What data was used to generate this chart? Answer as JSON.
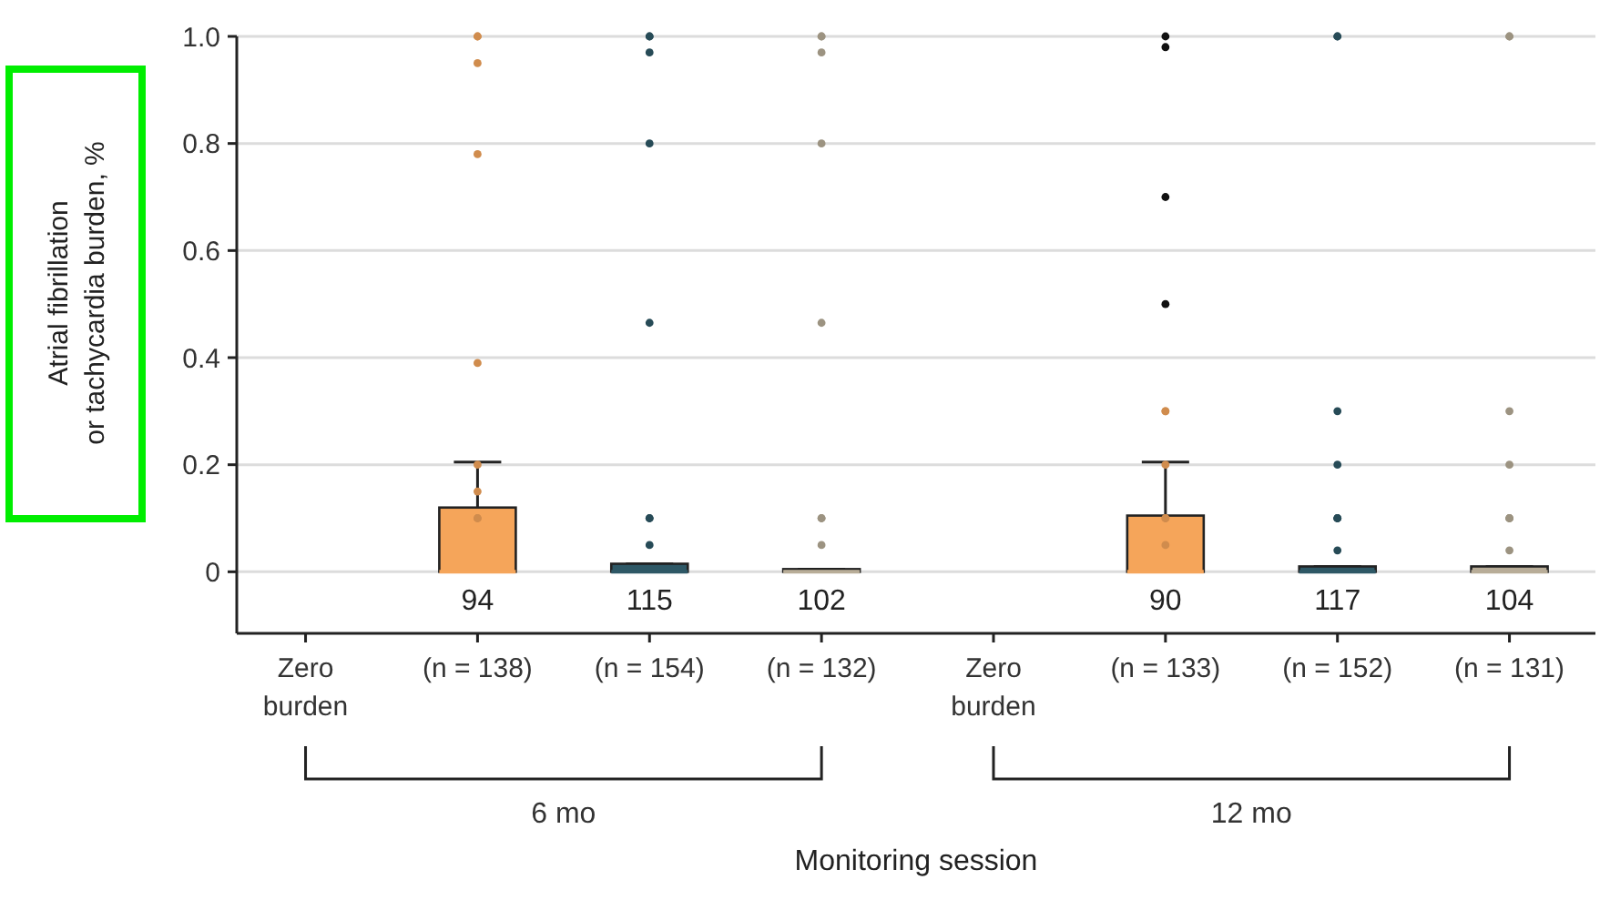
{
  "chart_data": {
    "type": "box",
    "xlabel": "Monitoring session",
    "ylabel": "Atrial fibrillation or tachycardia burden, %",
    "categories": [
      "Zero burden",
      "(n = 138)",
      "(n = 154)",
      "(n = 132)",
      "Zero burden",
      "(n = 133)",
      "(n = 152)",
      "(n = 131)"
    ],
    "colors": [
      null,
      "#f5a55a",
      "#2e5866",
      "#b8ad98",
      null,
      "#f5a55a",
      "#2e5866",
      "#b8ad98"
    ],
    "boxes": [
      null,
      {
        "low": 0,
        "q1": 0,
        "median": 0,
        "q3": 0.12,
        "high": 0.205,
        "outliers": [
          1.0,
          1.0,
          0.95,
          0.78,
          0.39,
          0.2,
          0.15,
          0.1,
          0.1
        ]
      },
      {
        "low": 0,
        "q1": 0,
        "median": 0,
        "q3": 0.015,
        "high": 0.015,
        "outliers": [
          1.0,
          1.0,
          0.97,
          0.8,
          0.465,
          0.1,
          0.1,
          0.05
        ]
      },
      {
        "low": 0,
        "q1": 0,
        "median": 0,
        "q3": 0.005,
        "high": 0.005,
        "outliers": [
          1.0,
          1.0,
          0.97,
          0.8,
          0.465,
          0.1,
          0.1,
          0.05
        ]
      },
      null,
      {
        "low": 0,
        "q1": 0,
        "median": 0,
        "q3": 0.105,
        "high": 0.205,
        "outliers": [
          0.3,
          0.3,
          0.2,
          0.1,
          0.1,
          0.05
        ]
      },
      {
        "low": 0,
        "q1": 0,
        "median": 0,
        "q3": 0.01,
        "high": 0.01,
        "outliers": [
          1.0,
          1.0,
          0.3,
          0.2,
          0.1,
          0.1,
          0.1,
          0.04
        ]
      },
      {
        "low": 0,
        "q1": 0,
        "median": 0,
        "q3": 0.01,
        "high": 0.01,
        "outliers": [
          1.0,
          1.0,
          0.3,
          0.2,
          0.1,
          0.1,
          0.1,
          0.04
        ]
      }
    ],
    "series": [
      {
        "type": "scatter",
        "color": "#111111",
        "x": [
          "(n = 133)",
          "(n = 133)",
          "(n = 133)",
          "(n = 133)"
        ],
        "values": [
          1.0,
          0.98,
          0.7,
          0.5
        ]
      }
    ],
    "ylim": [
      -0.115,
      1.0
    ],
    "yticks": [
      0,
      0.2,
      0.4,
      0.6,
      0.8,
      {
        "value": 1,
        "label": "1.0"
      }
    ],
    "grid": "y",
    "marker": "circle",
    "annotations": [
      "94",
      "115",
      "102",
      "90",
      "117",
      "104",
      "6 mo",
      "12 mo"
    ]
  }
}
